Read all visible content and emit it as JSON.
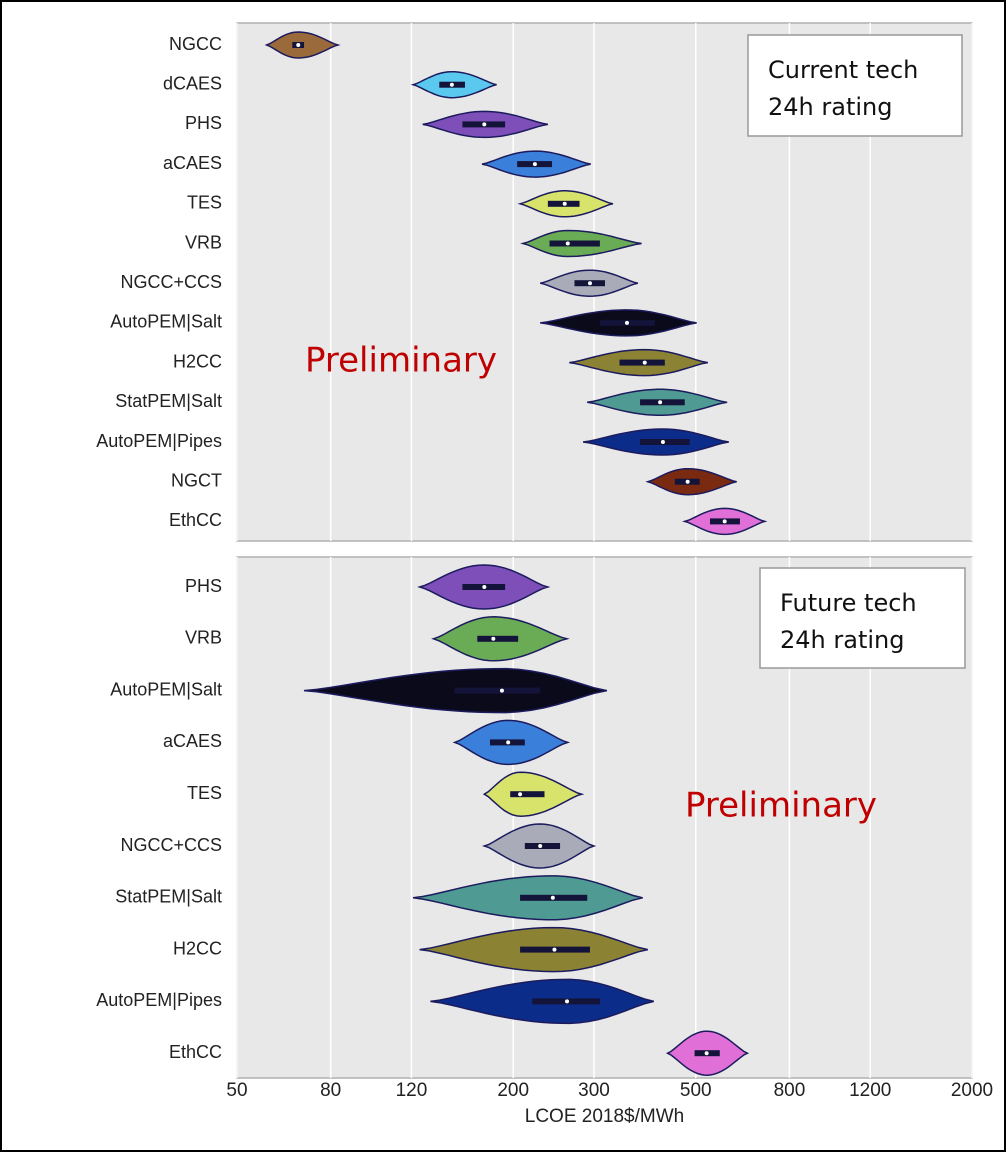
{
  "chart_data": [
    {
      "type": "violin",
      "legend_text": [
        "Current tech",
        "24h rating"
      ],
      "annotation": "Preliminary",
      "categories": [
        "NGCC",
        "dCAES",
        "PHS",
        "aCAES",
        "TES",
        "VRB",
        "NGCC+CCS",
        "AutoPEM|Salt",
        "H2CC",
        "StatPEM|Salt",
        "AutoPEM|Pipes",
        "NGCT",
        "EthCC"
      ],
      "min": [
        58,
        121,
        127,
        171,
        207,
        210,
        229,
        229,
        265,
        290,
        284,
        393,
        473
      ],
      "q1": [
        66,
        138,
        155,
        204,
        238,
        240,
        272,
        309,
        341,
        378,
        378,
        450,
        537
      ],
      "median": [
        68,
        147,
        173,
        223,
        259,
        263,
        294,
        354,
        387,
        418,
        424,
        480,
        578
      ],
      "q3": [
        70,
        157,
        192,
        243,
        279,
        309,
        317,
        407,
        428,
        473,
        485,
        510,
        624
      ],
      "max": [
        83,
        184,
        238,
        295,
        330,
        381,
        374,
        502,
        531,
        585,
        590,
        614,
        707
      ],
      "colors": [
        "#9b6a3a",
        "#5bc8f0",
        "#7e4fb8",
        "#3a7fd9",
        "#d7e36a",
        "#6aab55",
        "#a9abb8",
        "#0a0a1a",
        "#8b8234",
        "#4f9a92",
        "#0c2c8a",
        "#7a2a10",
        "#e070d8"
      ]
    },
    {
      "type": "violin",
      "legend_text": [
        "Future tech",
        "24h rating"
      ],
      "annotation": "Preliminary",
      "xlabel": "LCOE 2018$/MWh",
      "xscale": "log",
      "xlim": [
        50,
        2000
      ],
      "xticks": [
        50,
        80,
        120,
        200,
        300,
        500,
        800,
        1200,
        2000
      ],
      "grid": true,
      "categories": [
        "PHS",
        "VRB",
        "AutoPEM|Salt",
        "aCAES",
        "TES",
        "NGCC+CCS",
        "StatPEM|Salt",
        "H2CC",
        "AutoPEM|Pipes",
        "EthCC"
      ],
      "min": [
        125,
        134,
        70,
        149,
        173,
        173,
        121,
        125,
        132,
        434
      ],
      "q1": [
        155,
        167,
        149,
        178,
        197,
        212,
        207,
        207,
        220,
        497
      ],
      "median": [
        173,
        181,
        189,
        195,
        207,
        229,
        244,
        246,
        262,
        528
      ],
      "q3": [
        192,
        205,
        229,
        212,
        234,
        253,
        290,
        294,
        309,
        564
      ],
      "max": [
        238,
        262,
        320,
        263,
        282,
        300,
        383,
        393,
        405,
        648
      ],
      "colors": [
        "#7e4fb8",
        "#6aab55",
        "#0a0a1a",
        "#3a7fd9",
        "#d7e36a",
        "#a9abb8",
        "#4f9a92",
        "#8b8234",
        "#0c2c8a",
        "#e070d8"
      ]
    }
  ]
}
